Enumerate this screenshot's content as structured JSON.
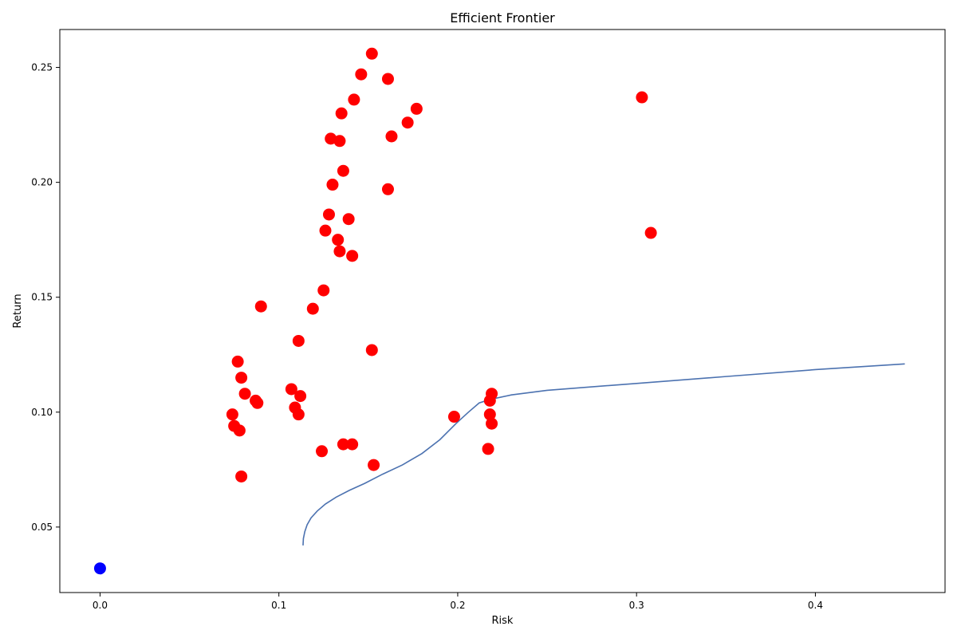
{
  "chart_data": {
    "type": "scatter",
    "title": "Efficient Frontier",
    "xlabel": "Risk",
    "ylabel": "Return",
    "xlim": [
      -0.0225,
      0.4725
    ],
    "ylim": [
      0.0215,
      0.2665
    ],
    "x_ticks": [
      0.0,
      0.1,
      0.2,
      0.3,
      0.4
    ],
    "x_tick_labels": [
      "0.0",
      "0.1",
      "0.2",
      "0.3",
      "0.4"
    ],
    "y_ticks": [
      0.05,
      0.1,
      0.15,
      0.2,
      0.25
    ],
    "y_tick_labels": [
      "0.05",
      "0.10",
      "0.15",
      "0.20",
      "0.25"
    ],
    "grid": false,
    "series": [
      {
        "kind": "scatter",
        "color": "#ff0000",
        "points": [
          [
            0.152,
            0.256
          ],
          [
            0.146,
            0.247
          ],
          [
            0.161,
            0.245
          ],
          [
            0.142,
            0.236
          ],
          [
            0.135,
            0.23
          ],
          [
            0.177,
            0.232
          ],
          [
            0.172,
            0.226
          ],
          [
            0.129,
            0.219
          ],
          [
            0.134,
            0.218
          ],
          [
            0.163,
            0.22
          ],
          [
            0.136,
            0.205
          ],
          [
            0.13,
            0.199
          ],
          [
            0.161,
            0.197
          ],
          [
            0.128,
            0.186
          ],
          [
            0.139,
            0.184
          ],
          [
            0.126,
            0.179
          ],
          [
            0.133,
            0.175
          ],
          [
            0.134,
            0.17
          ],
          [
            0.141,
            0.168
          ],
          [
            0.125,
            0.153
          ],
          [
            0.09,
            0.146
          ],
          [
            0.119,
            0.145
          ],
          [
            0.111,
            0.131
          ],
          [
            0.152,
            0.127
          ],
          [
            0.077,
            0.122
          ],
          [
            0.079,
            0.115
          ],
          [
            0.081,
            0.108
          ],
          [
            0.087,
            0.105
          ],
          [
            0.088,
            0.104
          ],
          [
            0.074,
            0.099
          ],
          [
            0.075,
            0.094
          ],
          [
            0.078,
            0.092
          ],
          [
            0.107,
            0.11
          ],
          [
            0.112,
            0.107
          ],
          [
            0.109,
            0.102
          ],
          [
            0.111,
            0.099
          ],
          [
            0.136,
            0.086
          ],
          [
            0.141,
            0.086
          ],
          [
            0.124,
            0.083
          ],
          [
            0.153,
            0.077
          ],
          [
            0.079,
            0.072
          ],
          [
            0.198,
            0.098
          ],
          [
            0.219,
            0.108
          ],
          [
            0.218,
            0.105
          ],
          [
            0.218,
            0.099
          ],
          [
            0.219,
            0.095
          ],
          [
            0.217,
            0.084
          ],
          [
            0.303,
            0.237
          ],
          [
            0.308,
            0.178
          ]
        ]
      },
      {
        "kind": "scatter",
        "color": "#0000ff",
        "points": [
          [
            0.0,
            0.032
          ]
        ]
      },
      {
        "kind": "line",
        "color": "#4c72b0",
        "points": [
          [
            0.1135,
            0.042
          ],
          [
            0.1137,
            0.045
          ],
          [
            0.1145,
            0.048
          ],
          [
            0.1158,
            0.051
          ],
          [
            0.118,
            0.054
          ],
          [
            0.1215,
            0.057
          ],
          [
            0.126,
            0.06
          ],
          [
            0.132,
            0.063
          ],
          [
            0.1395,
            0.066
          ],
          [
            0.148,
            0.069
          ],
          [
            0.158,
            0.073
          ],
          [
            0.169,
            0.077
          ],
          [
            0.18,
            0.082
          ],
          [
            0.19,
            0.088
          ],
          [
            0.199,
            0.095
          ],
          [
            0.206,
            0.1
          ],
          [
            0.212,
            0.104
          ],
          [
            0.218,
            0.1055
          ],
          [
            0.23,
            0.1075
          ],
          [
            0.25,
            0.1095
          ],
          [
            0.3,
            0.1125
          ],
          [
            0.35,
            0.1155
          ],
          [
            0.4,
            0.1185
          ],
          [
            0.45,
            0.121
          ]
        ]
      }
    ]
  }
}
